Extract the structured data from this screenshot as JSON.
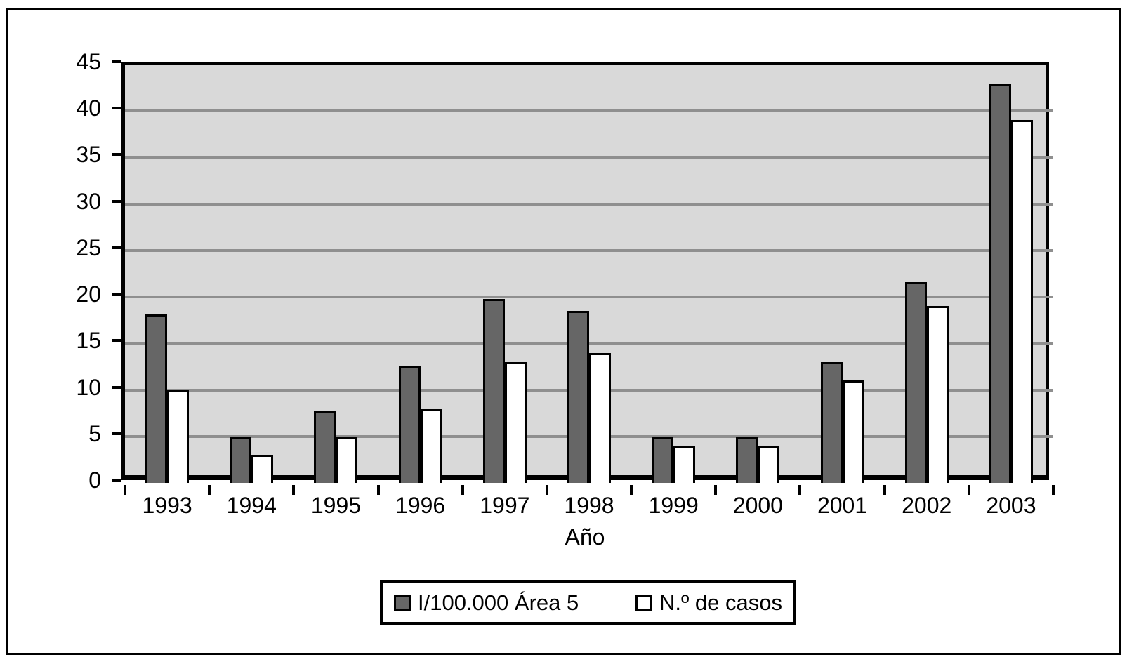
{
  "chart_data": {
    "type": "bar",
    "categories": [
      "1993",
      "1994",
      "1995",
      "1996",
      "1997",
      "1998",
      "1999",
      "2000",
      "2001",
      "2002",
      "2003"
    ],
    "series": [
      {
        "name": "I/100.000 Área 5",
        "color": "#666666",
        "values": [
          18.1,
          5,
          7.7,
          12.5,
          19.8,
          18.5,
          5,
          4.9,
          13,
          21.6,
          43
        ]
      },
      {
        "name": "N.º de casos",
        "color": "#ffffff",
        "values": [
          10,
          3,
          5,
          8,
          13,
          14,
          4,
          4,
          11,
          19,
          39
        ]
      }
    ],
    "title": "",
    "xlabel": "Año",
    "ylabel": "",
    "ylim": [
      0,
      45
    ],
    "yticks": [
      45,
      40,
      35,
      30,
      25,
      20,
      15,
      10,
      5,
      0
    ],
    "grid": true,
    "legend_position": "bottom",
    "plot_bg": "#d9d9d9",
    "gridline_color": "#8f8f8f"
  }
}
